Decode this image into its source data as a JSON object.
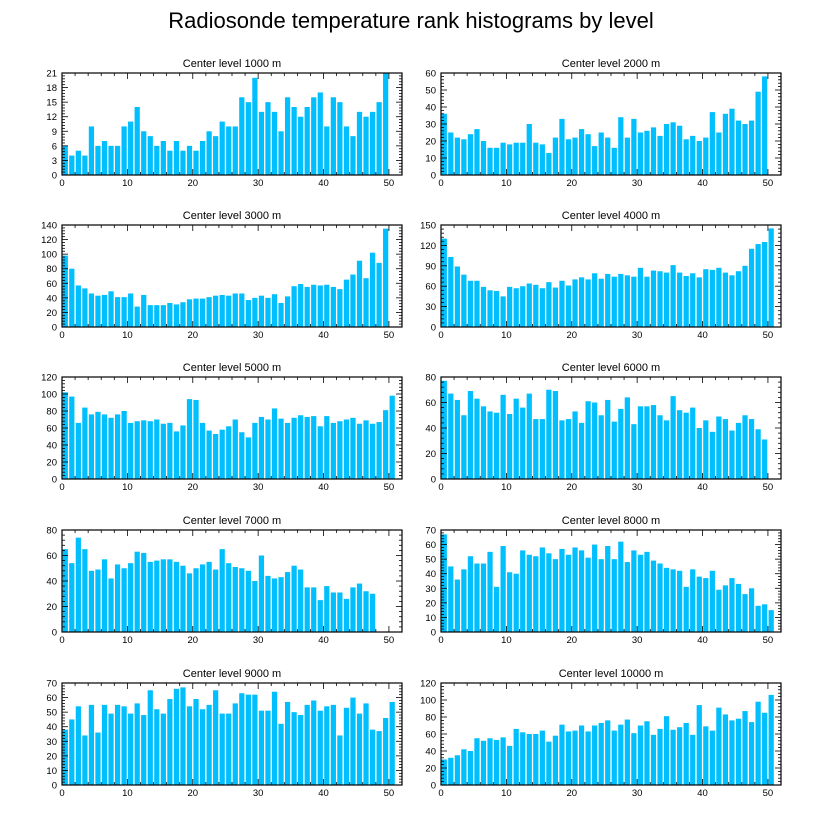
{
  "title": "Radiosonde temperature rank histograms by level",
  "bar_color": "#00bfff",
  "chart_data": [
    {
      "type": "bar",
      "title": "Center level 1000 m",
      "xlabel": "",
      "ylabel": "",
      "xlim": [
        0,
        52
      ],
      "ylim": [
        0,
        21
      ],
      "xticks": [
        0,
        10,
        20,
        30,
        40,
        50
      ],
      "yticks": [
        0,
        3,
        6,
        9,
        12,
        15,
        18,
        21
      ],
      "values": [
        6,
        4,
        5,
        4,
        10,
        6,
        7,
        6,
        6,
        10,
        11,
        14,
        9,
        8,
        6,
        7,
        5,
        7,
        5,
        6,
        5,
        7,
        9,
        8,
        11,
        10,
        10,
        16,
        15,
        20,
        13,
        15,
        13,
        9,
        16,
        14,
        12,
        14,
        16,
        17,
        10,
        16,
        15,
        10,
        8,
        13,
        12,
        13,
        15,
        21
      ]
    },
    {
      "type": "bar",
      "title": "Center level 2000 m",
      "xlabel": "",
      "ylabel": "",
      "xlim": [
        0,
        52
      ],
      "ylim": [
        0,
        60
      ],
      "xticks": [
        0,
        10,
        20,
        30,
        40,
        50
      ],
      "yticks": [
        0,
        10,
        20,
        30,
        40,
        50,
        60
      ],
      "values": [
        36,
        25,
        22,
        21,
        24,
        27,
        20,
        16,
        16,
        19,
        18,
        19,
        19,
        30,
        19,
        18,
        13,
        22,
        33,
        21,
        22,
        27,
        24,
        17,
        25,
        22,
        16,
        34,
        22,
        33,
        25,
        26,
        28,
        23,
        30,
        31,
        29,
        21,
        23,
        20,
        22,
        37,
        25,
        36,
        39,
        32,
        30,
        32,
        49,
        58
      ]
    },
    {
      "type": "bar",
      "title": "Center level 3000 m",
      "xlabel": "",
      "ylabel": "",
      "xlim": [
        0,
        52
      ],
      "ylim": [
        0,
        140
      ],
      "xticks": [
        0,
        10,
        20,
        30,
        40,
        50
      ],
      "yticks": [
        0,
        20,
        40,
        60,
        80,
        100,
        120,
        140
      ],
      "values": [
        98,
        80,
        57,
        53,
        46,
        43,
        44,
        49,
        41,
        41,
        46,
        28,
        44,
        30,
        30,
        30,
        33,
        31,
        34,
        38,
        39,
        39,
        41,
        43,
        44,
        43,
        46,
        46,
        37,
        40,
        43,
        40,
        45,
        33,
        42,
        56,
        59,
        55,
        58,
        57,
        58,
        55,
        52,
        65,
        72,
        91,
        67,
        102,
        88,
        135
      ]
    },
    {
      "type": "bar",
      "title": "Center level 4000 m",
      "xlabel": "",
      "ylabel": "",
      "xlim": [
        0,
        52
      ],
      "ylim": [
        0,
        150
      ],
      "xticks": [
        0,
        10,
        20,
        30,
        40,
        50
      ],
      "yticks": [
        0,
        30,
        60,
        90,
        120,
        150
      ],
      "values": [
        130,
        103,
        89,
        77,
        68,
        68,
        59,
        54,
        53,
        45,
        59,
        57,
        60,
        64,
        62,
        57,
        66,
        58,
        68,
        61,
        70,
        73,
        70,
        79,
        71,
        78,
        74,
        78,
        76,
        74,
        87,
        74,
        83,
        82,
        80,
        91,
        80,
        75,
        79,
        73,
        85,
        84,
        87,
        80,
        76,
        82,
        90,
        115,
        122,
        125,
        145
      ]
    },
    {
      "type": "bar",
      "title": "Center level 5000 m",
      "xlabel": "",
      "ylabel": "",
      "xlim": [
        0,
        52
      ],
      "ylim": [
        0,
        120
      ],
      "xticks": [
        0,
        10,
        20,
        30,
        40,
        50
      ],
      "yticks": [
        0,
        20,
        40,
        60,
        80,
        100,
        120
      ],
      "values": [
        102,
        97,
        66,
        84,
        76,
        79,
        76,
        72,
        76,
        80,
        66,
        68,
        69,
        68,
        70,
        65,
        66,
        56,
        63,
        94,
        93,
        66,
        57,
        53,
        58,
        62,
        70,
        55,
        49,
        66,
        73,
        70,
        83,
        71,
        66,
        72,
        75,
        73,
        74,
        62,
        74,
        66,
        68,
        70,
        72,
        65,
        69,
        65,
        67,
        81,
        98
      ]
    },
    {
      "type": "bar",
      "title": "Center level 6000 m",
      "xlabel": "",
      "ylabel": "",
      "xlim": [
        0,
        52
      ],
      "ylim": [
        0,
        80
      ],
      "xticks": [
        0,
        10,
        20,
        30,
        40,
        50
      ],
      "yticks": [
        0,
        20,
        40,
        60,
        80
      ],
      "values": [
        77,
        67,
        62,
        50,
        69,
        63,
        57,
        53,
        52,
        66,
        51,
        63,
        56,
        67,
        47,
        47,
        70,
        69,
        46,
        47,
        53,
        44,
        61,
        60,
        50,
        62,
        45,
        55,
        64,
        43,
        57,
        57,
        58,
        50,
        46,
        65,
        54,
        52,
        56,
        40,
        46,
        37,
        49,
        47,
        38,
        44,
        50,
        47,
        39,
        31
      ]
    },
    {
      "type": "bar",
      "title": "Center level 7000 m",
      "xlabel": "",
      "ylabel": "",
      "xlim": [
        0,
        52
      ],
      "ylim": [
        0,
        80
      ],
      "xticks": [
        0,
        10,
        20,
        30,
        40,
        50
      ],
      "yticks": [
        0,
        20,
        40,
        60,
        80
      ],
      "values": [
        65,
        54,
        74,
        65,
        48,
        49,
        57,
        42,
        53,
        50,
        54,
        63,
        62,
        55,
        56,
        57,
        57,
        55,
        52,
        46,
        50,
        53,
        55,
        49,
        65,
        54,
        51,
        50,
        48,
        40,
        60,
        44,
        42,
        43,
        47,
        52,
        49,
        35,
        35,
        25,
        36,
        31,
        31,
        26,
        35,
        38,
        32,
        30
      ]
    },
    {
      "type": "bar",
      "title": "Center level 8000 m",
      "xlabel": "",
      "ylabel": "",
      "xlim": [
        0,
        52
      ],
      "ylim": [
        0,
        70
      ],
      "xticks": [
        0,
        10,
        20,
        30,
        40,
        50
      ],
      "yticks": [
        0,
        10,
        20,
        30,
        40,
        50,
        60,
        70
      ],
      "values": [
        67,
        45,
        36,
        43,
        52,
        47,
        47,
        55,
        31,
        59,
        41,
        40,
        56,
        53,
        52,
        58,
        54,
        50,
        57,
        53,
        58,
        56,
        51,
        60,
        50,
        59,
        50,
        62,
        48,
        56,
        53,
        55,
        49,
        47,
        44,
        43,
        42,
        31,
        43,
        38,
        37,
        42,
        29,
        32,
        37,
        33,
        26,
        30,
        18,
        19,
        15
      ]
    },
    {
      "type": "bar",
      "title": "Center level 9000 m",
      "xlabel": "",
      "ylabel": "",
      "xlim": [
        0,
        52
      ],
      "ylim": [
        0,
        70
      ],
      "xticks": [
        0,
        10,
        20,
        30,
        40,
        50
      ],
      "yticks": [
        0,
        10,
        20,
        30,
        40,
        50,
        60,
        70
      ],
      "values": [
        38,
        45,
        54,
        34,
        55,
        36,
        55,
        49,
        55,
        54,
        49,
        56,
        48,
        65,
        52,
        49,
        59,
        66,
        67,
        54,
        59,
        52,
        55,
        65,
        49,
        49,
        56,
        63,
        62,
        62,
        51,
        51,
        64,
        42,
        57,
        50,
        48,
        55,
        58,
        51,
        54,
        55,
        34,
        53,
        60,
        49,
        56,
        38,
        37,
        46,
        57
      ]
    },
    {
      "type": "bar",
      "title": "Center level 10000 m",
      "xlabel": "",
      "ylabel": "",
      "xlim": [
        0,
        52
      ],
      "ylim": [
        0,
        120
      ],
      "xticks": [
        0,
        10,
        20,
        30,
        40,
        50
      ],
      "yticks": [
        0,
        20,
        40,
        60,
        80,
        100,
        120
      ],
      "values": [
        30,
        32,
        35,
        42,
        40,
        55,
        52,
        55,
        53,
        56,
        46,
        66,
        62,
        60,
        60,
        64,
        51,
        58,
        71,
        63,
        64,
        70,
        63,
        70,
        73,
        76,
        64,
        71,
        77,
        61,
        70,
        75,
        59,
        66,
        81,
        65,
        68,
        73,
        59,
        94,
        69,
        64,
        91,
        83,
        76,
        78,
        87,
        74,
        98,
        85,
        106
      ]
    }
  ]
}
